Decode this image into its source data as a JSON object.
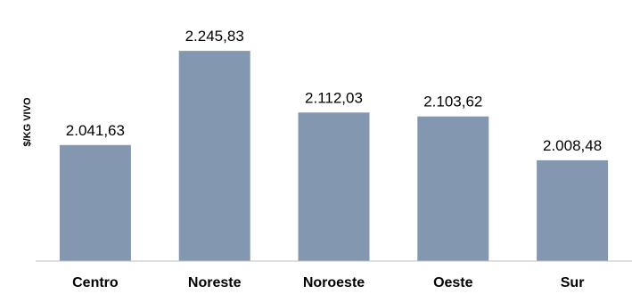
{
  "chart_data": {
    "type": "bar",
    "title": "",
    "xlabel": "",
    "ylabel": "$/KG VIVO",
    "categories": [
      "Centro",
      "Noreste",
      "Noroeste",
      "Oeste",
      "Sur"
    ],
    "values": [
      2041.63,
      2245.83,
      2112.03,
      2103.62,
      2008.48
    ],
    "value_labels": [
      "2.041,63",
      "2.245,83",
      "2.112,03",
      "2.103,62",
      "2.008,48"
    ],
    "ylim": [
      1790,
      2275
    ],
    "grid": false,
    "legend": "none",
    "bar_color": "#8497b0",
    "axis_color": "#bfbfbf"
  }
}
